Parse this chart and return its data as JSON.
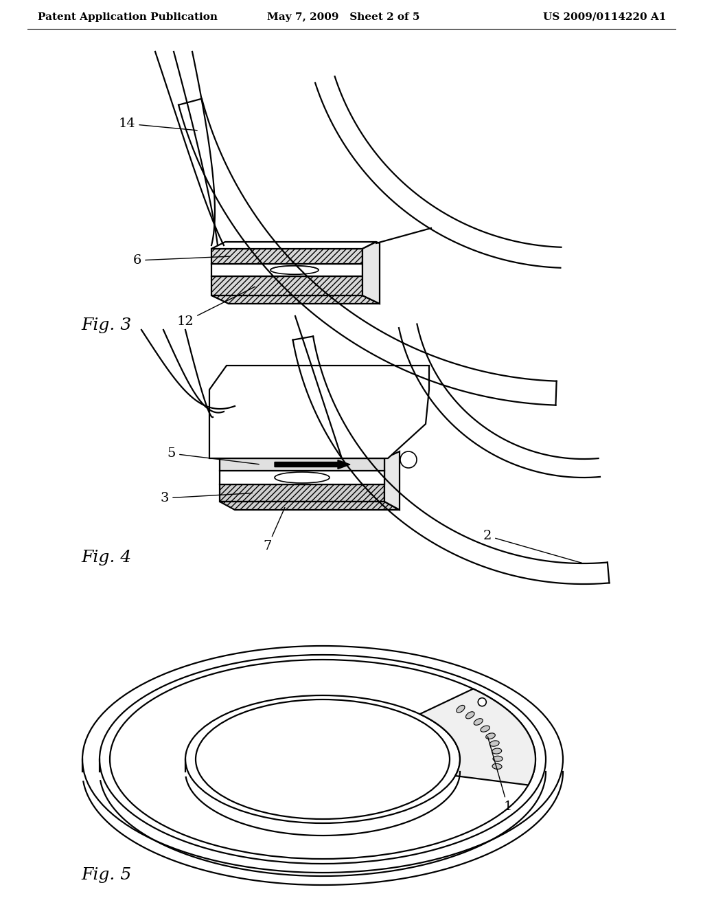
{
  "bg_color": "#ffffff",
  "header_left": "Patent Application Publication",
  "header_center": "May 7, 2009   Sheet 2 of 5",
  "header_right": "US 2009/0114220 A1",
  "fig3_label": "Fig. 3",
  "fig4_label": "Fig. 4",
  "fig5_label": "Fig. 5",
  "label_fontsize": 18,
  "annotation_fontsize": 14,
  "line_color": "#000000",
  "lw": 1.6
}
